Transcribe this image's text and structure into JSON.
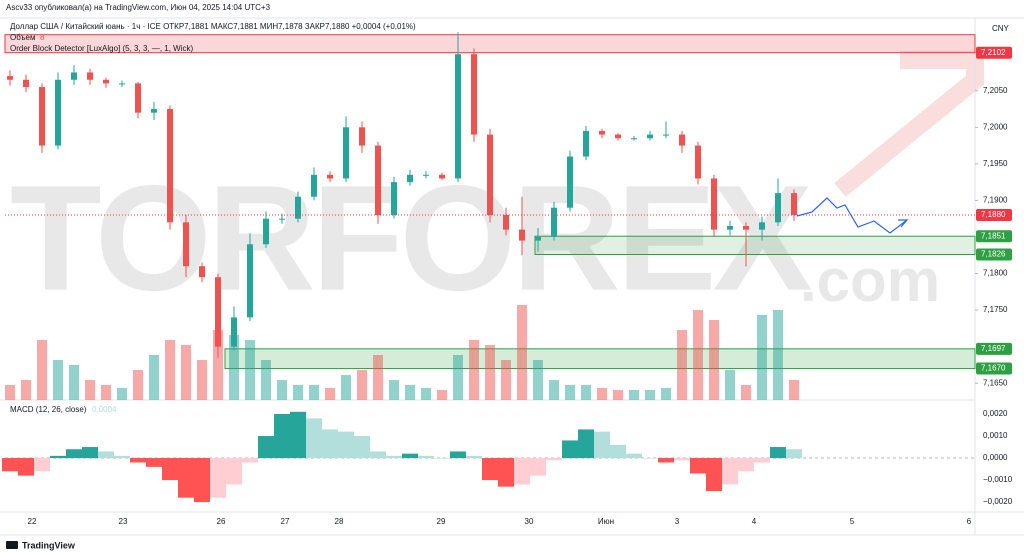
{
  "header": {
    "publisher": "Ascv33 опубликовал(а) на TradingView.com, Июн 04, 2025 14:04 UTC+3",
    "symbol": "Доллар США / Китайский юань · 1ч · ICE  ОТКР7,1881  МАКС7,1881  МИН7,1878  ЗАКР7,1880  +0,0004 (+0,01%)",
    "volume_legend": "Объем",
    "volume_value": "8",
    "indicator": "Order Block Detector [LuxAlgo] (5, 3, 3, —, 1, Wick)",
    "macd_legend": "MACD (12, 26, close)",
    "macd_value": "0.0004",
    "currency": "CNY",
    "footer": "TradingView"
  },
  "watermark": {
    "main": "TORFOREX",
    "suffix": ".com"
  },
  "chart_data": {
    "type": "candlestick",
    "ylim": [
      7.1627,
      7.2144
    ],
    "yticks": [
      {
        "value": 7.205,
        "label": "7,2050"
      },
      {
        "value": 7.2,
        "label": "7,2000"
      },
      {
        "value": 7.195,
        "label": "7,1950"
      },
      {
        "value": 7.19,
        "label": "7,1900"
      },
      {
        "value": 7.18,
        "label": "7,1800"
      },
      {
        "value": 7.175,
        "label": "7,1750"
      },
      {
        "value": 7.165,
        "label": "7,1650"
      }
    ],
    "levels": [
      {
        "value": 7.2102,
        "label": "7,2102",
        "color": "#f23645"
      },
      {
        "value": 7.1851,
        "label": "7,1851",
        "color": "#2ea043"
      },
      {
        "value": 7.1826,
        "label": "7,1826",
        "color": "#2ea043"
      },
      {
        "value": 7.1697,
        "label": "7,1697",
        "color": "#2ea043"
      },
      {
        "value": 7.167,
        "label": "7,1670",
        "color": "#2ea043"
      }
    ],
    "last_price": {
      "value": 7.188,
      "label": "7,1880",
      "color": "#f23645"
    },
    "up_color": "#26a69a",
    "down_color": "#ef5350",
    "dates": [
      "22",
      "23",
      "26",
      "27",
      "28",
      "29",
      "30",
      "Июн",
      "3",
      "4",
      "5",
      "6"
    ],
    "candles": [
      [
        7.207,
        7.2078,
        7.2057,
        7.2065
      ],
      [
        7.2065,
        7.2072,
        7.2048,
        7.2055
      ],
      [
        7.2055,
        7.206,
        7.1965,
        7.1975
      ],
      [
        7.1975,
        7.2075,
        7.197,
        7.2065
      ],
      [
        7.2065,
        7.2085,
        7.2058,
        7.2075
      ],
      [
        7.2075,
        7.208,
        7.2058,
        7.2065
      ],
      [
        7.2065,
        7.2068,
        7.2054,
        7.206
      ],
      [
        7.206,
        7.2064,
        7.2055,
        7.206
      ],
      [
        7.206,
        7.2062,
        7.2012,
        7.202
      ],
      [
        7.202,
        7.2035,
        7.201,
        7.2025
      ],
      [
        7.2025,
        7.203,
        7.186,
        7.187
      ],
      [
        7.187,
        7.188,
        7.1795,
        7.181
      ],
      [
        7.181,
        7.1815,
        7.1788,
        7.1795
      ],
      [
        7.1795,
        7.18,
        7.1685,
        7.17
      ],
      [
        7.17,
        7.1755,
        7.1695,
        7.174
      ],
      [
        7.174,
        7.1855,
        7.1735,
        7.184
      ],
      [
        7.184,
        7.1885,
        7.1835,
        7.1875
      ],
      [
        7.1875,
        7.1882,
        7.1868,
        7.1875
      ],
      [
        7.1875,
        7.1912,
        7.187,
        7.1905
      ],
      [
        7.1905,
        7.1945,
        7.19,
        7.1935
      ],
      [
        7.1935,
        7.194,
        7.1925,
        7.193
      ],
      [
        7.193,
        7.2015,
        7.1925,
        7.2
      ],
      [
        7.2,
        7.2008,
        7.1965,
        7.1975
      ],
      [
        7.1975,
        7.198,
        7.1868,
        7.188
      ],
      [
        7.188,
        7.1932,
        7.1875,
        7.1925
      ],
      [
        7.1925,
        7.1942,
        7.192,
        7.1935
      ],
      [
        7.1935,
        7.194,
        7.193,
        7.1935
      ],
      [
        7.1935,
        7.1938,
        7.1928,
        7.193
      ],
      [
        7.193,
        7.213,
        7.1925,
        7.21
      ],
      [
        7.21,
        7.2108,
        7.198,
        7.199
      ],
      [
        7.199,
        7.1998,
        7.187,
        7.188
      ],
      [
        7.188,
        7.189,
        7.1852,
        7.186
      ],
      [
        7.186,
        7.1905,
        7.1825,
        7.1845
      ],
      [
        7.1845,
        7.1862,
        7.183,
        7.185
      ],
      [
        7.185,
        7.1898,
        7.1845,
        7.189
      ],
      [
        7.189,
        7.1968,
        7.1885,
        7.196
      ],
      [
        7.196,
        7.2002,
        7.1955,
        7.1995
      ],
      [
        7.1995,
        7.1998,
        7.1985,
        7.199
      ],
      [
        7.199,
        7.1992,
        7.1982,
        7.1985
      ],
      [
        7.1985,
        7.1988,
        7.1982,
        7.1985
      ],
      [
        7.1985,
        7.1995,
        7.1982,
        7.199
      ],
      [
        7.199,
        7.2008,
        7.1985,
        7.199
      ],
      [
        7.199,
        7.1995,
        7.1965,
        7.1975
      ],
      [
        7.1975,
        7.198,
        7.1922,
        7.193
      ],
      [
        7.193,
        7.1935,
        7.185,
        7.186
      ],
      [
        7.186,
        7.1872,
        7.1852,
        7.1865
      ],
      [
        7.1865,
        7.187,
        7.181,
        7.186
      ],
      [
        7.186,
        7.1878,
        7.1845,
        7.187
      ],
      [
        7.187,
        7.193,
        7.1865,
        7.191
      ],
      [
        7.191,
        7.1915,
        7.1872,
        7.188
      ]
    ],
    "volume_lim": [
      0,
      100
    ],
    "volume": [
      15,
      20,
      60,
      40,
      35,
      20,
      15,
      12,
      30,
      45,
      60,
      55,
      40,
      70,
      65,
      60,
      40,
      20,
      15,
      15,
      12,
      25,
      30,
      45,
      20,
      15,
      12,
      10,
      45,
      60,
      55,
      40,
      95,
      40,
      20,
      15,
      15,
      12,
      10,
      10,
      10,
      12,
      70,
      90,
      80,
      30,
      15,
      85,
      90,
      20
    ],
    "y2lim": [
      -0.00245,
      0.0025
    ],
    "y2ticks": [
      {
        "value": 0.002,
        "label": "0,0020"
      },
      {
        "value": 0.001,
        "label": "0,0010"
      },
      {
        "value": 0,
        "label": "0,0000"
      },
      {
        "value": -0.001,
        "label": "−0,0010"
      },
      {
        "value": -0.002,
        "label": "−0,0020"
      }
    ],
    "macd": [
      -0.0006,
      -0.0008,
      -0.0006,
      0.0001,
      0.0004,
      0.0005,
      0.0003,
      0.0001,
      -0.0002,
      -0.0004,
      -0.001,
      -0.0018,
      -0.002,
      -0.0018,
      -0.0012,
      -0.0002,
      0.001,
      0.002,
      0.0021,
      0.0018,
      0.0013,
      0.0012,
      0.001,
      0.0003,
      0.0001,
      0.0002,
      0.0001,
      0.0,
      0.0003,
      0.0001,
      -0.001,
      -0.0013,
      -0.0012,
      -0.0008,
      -0.0001,
      0.0008,
      0.0013,
      0.0012,
      0.0006,
      0.0002,
      0.0,
      -0.0002,
      -0.0001,
      -0.0007,
      -0.0015,
      -0.0012,
      -0.0006,
      -0.0002,
      0.0005,
      0.0004
    ]
  }
}
